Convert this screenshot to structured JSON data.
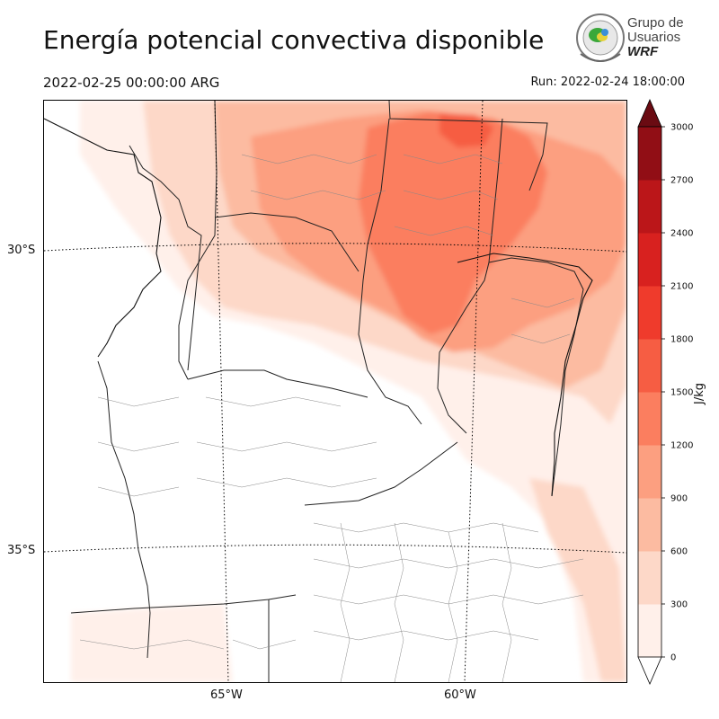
{
  "title": "Energía potencial convectiva disponible",
  "valid_time": "2022-02-25 00:00:00 ARG",
  "run_time": "Run: 2022-02-24 18:00:00",
  "logo": {
    "line1": "Grupo de",
    "line2": "Usuarios",
    "line3": "WRF"
  },
  "map": {
    "lat_labels": [
      "30°S",
      "35°S"
    ],
    "lon_labels": [
      "65°W",
      "60°W"
    ],
    "field": "CAPE",
    "colormap": "Reds"
  },
  "colorbar": {
    "unit": "J/kg",
    "ticks": [
      "0",
      "300",
      "600",
      "900",
      "1200",
      "1500",
      "1800",
      "2100",
      "2400",
      "2700",
      "3000"
    ],
    "levels": [
      0,
      300,
      600,
      900,
      1200,
      1500,
      1800,
      2100,
      2400,
      2700,
      3000
    ],
    "colors": [
      "#fff0ea",
      "#fdd8c8",
      "#fcbba1",
      "#fc9f80",
      "#fb7e5f",
      "#f65d43",
      "#ef3b2c",
      "#d8211f",
      "#bb1619",
      "#910e15",
      "#6a0b12"
    ],
    "extend": "both"
  }
}
